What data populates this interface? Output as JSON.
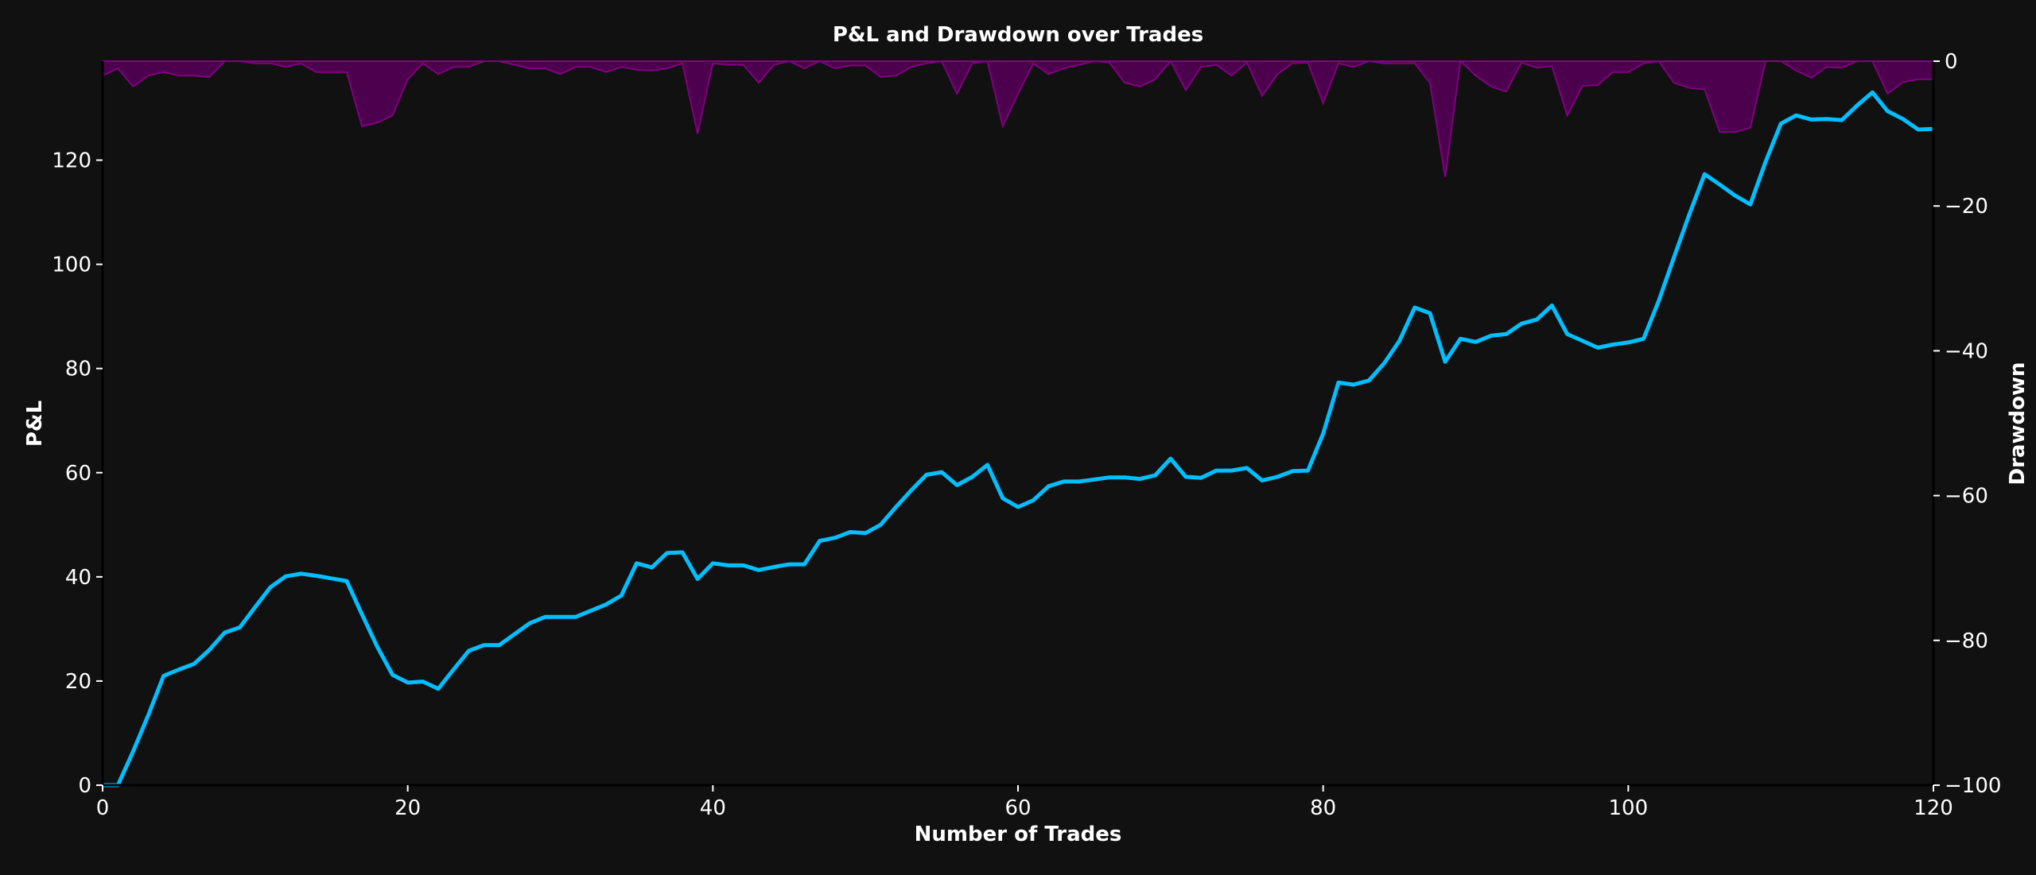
{
  "chart_data": {
    "type": "line",
    "title": "P&L and Drawdown over Trades",
    "xlabel": "Number of Trades",
    "ylabel": "P&L",
    "y2label": "Drawdown",
    "xlim": [
      0,
      120
    ],
    "ylim": [
      0,
      139
    ],
    "y2lim": [
      -100,
      0
    ],
    "xticks": [
      "0",
      "20",
      "40",
      "60",
      "80",
      "100",
      "120"
    ],
    "yticks": [
      "0",
      "20",
      "40",
      "60",
      "80",
      "100",
      "120"
    ],
    "y2ticks": [
      "0",
      "−20",
      "−40",
      "−60",
      "−80",
      "−100"
    ],
    "grid": false,
    "colors": {
      "pnl": "#00bfff",
      "drawdown": "#800080",
      "background": "#111111"
    },
    "series": [
      {
        "name": "P&L",
        "axis": "left",
        "values": [
          0,
          0,
          6.5,
          13.5,
          21,
          22.2,
          23.3,
          26,
          29.3,
          30.3,
          34.2,
          38,
          40.1,
          40.6,
          40.2,
          39.7,
          39.2,
          32.8,
          26.6,
          21.2,
          19.7,
          19.9,
          18.5,
          22.2,
          25.8,
          26.9,
          26.9,
          29,
          31.1,
          32.3,
          32.3,
          32.3,
          33.5,
          34.7,
          36.4,
          42.6,
          41.8,
          44.6,
          44.7,
          39.6,
          42.6,
          42.2,
          42.2,
          41.3,
          41.9,
          42.4,
          42.4,
          46.9,
          47.5,
          48.6,
          48.4,
          50,
          53.4,
          56.6,
          59.6,
          60.1,
          57.6,
          59.2,
          61.5,
          55.1,
          53.4,
          54.7,
          57.4,
          58.3,
          58.3,
          58.7,
          59.1,
          59.1,
          58.8,
          59.5,
          62.7,
          59.2,
          59,
          60.4,
          60.4,
          60.9,
          58.5,
          59.2,
          60.3,
          60.4,
          67.5,
          77.3,
          76.9,
          77.7,
          81,
          85.3,
          91.7,
          90.6,
          81.3,
          85.7,
          85.1,
          86.3,
          86.6,
          88.6,
          89.4,
          92.1,
          86.6,
          85.3,
          84,
          84.6,
          85,
          85.7,
          93,
          101.4,
          109.6,
          117.3,
          115.3,
          113.2,
          111.5,
          119.7,
          127,
          128.6,
          127.8,
          127.9,
          127.7,
          130.5,
          133,
          129.4,
          127.9,
          125.9,
          126
        ]
      },
      {
        "name": "Drawdown",
        "axis": "right",
        "type": "area",
        "values": [
          -2,
          -1,
          -3.5,
          -2,
          -1.5,
          -2,
          -2,
          -2.2,
          0,
          0,
          -0.3,
          -0.3,
          -0.8,
          -0.3,
          -1.5,
          -1.5,
          -1.5,
          -9,
          -8.5,
          -7.5,
          -2.5,
          -0.3,
          -1.8,
          -0.8,
          -0.8,
          0,
          0,
          -0.5,
          -1,
          -1,
          -1.8,
          -0.8,
          -0.8,
          -1.5,
          -0.8,
          -1.2,
          -1.3,
          -1,
          -0.3,
          -10,
          -0.3,
          -0.5,
          -0.5,
          -3,
          -0.5,
          0,
          -1,
          0,
          -1,
          -0.6,
          -0.6,
          -2.2,
          -2,
          -0.8,
          -0.3,
          0,
          -4.5,
          -0.3,
          0,
          -9,
          -4.5,
          -0.3,
          -1.8,
          -1,
          -0.5,
          0,
          -0.2,
          -3,
          -3.5,
          -2.5,
          0,
          -4,
          -0.8,
          -0.5,
          -2,
          -0.2,
          -4.8,
          -1.8,
          -0.3,
          -0.2,
          -5.8,
          -0.3,
          -0.8,
          0,
          -0.3,
          -0.3,
          -0.3,
          -3,
          -16,
          0,
          -2,
          -3.5,
          -4.2,
          -0.2,
          -0.9,
          -0.7,
          -7.5,
          -3.4,
          -3.3,
          -1.5,
          -1.5,
          -0.3,
          0,
          -3,
          -3.7,
          -3.9,
          -9.8,
          -9.8,
          -9.2,
          0,
          0,
          -1.3,
          -2.3,
          -0.8,
          -0.9,
          0,
          0,
          -4.5,
          -2.9,
          -2.5,
          -2.5
        ]
      }
    ]
  }
}
